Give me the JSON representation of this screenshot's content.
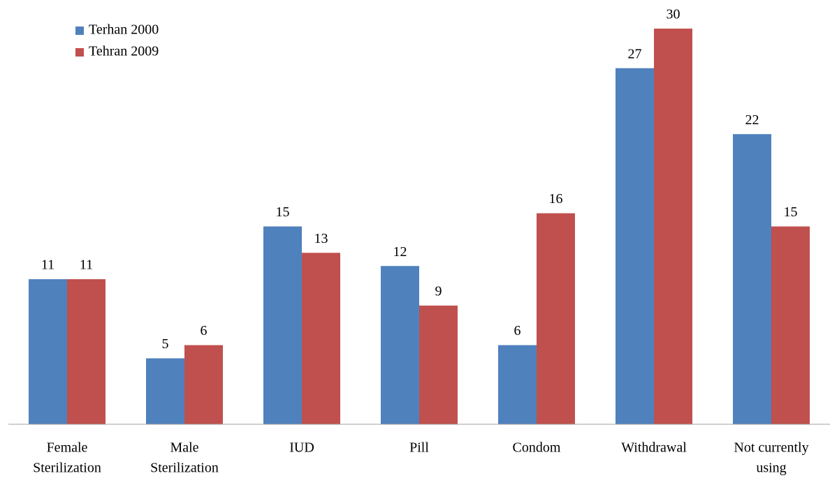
{
  "chart_data": {
    "type": "bar",
    "categories": [
      [
        "Female",
        "Sterilization"
      ],
      [
        "Male",
        "Sterilization"
      ],
      [
        "IUD"
      ],
      [
        "Pill"
      ],
      [
        "Condom"
      ],
      [
        "Withdrawal"
      ],
      [
        "Not currently",
        "using"
      ]
    ],
    "series": [
      {
        "name": "Terhan 2000",
        "color": "#4f81bd",
        "values": [
          11,
          5,
          15,
          12,
          6,
          27,
          22
        ]
      },
      {
        "name": "Tehran 2009",
        "color": "#c0504d",
        "values": [
          11,
          6,
          13,
          9,
          16,
          30,
          15
        ]
      }
    ],
    "ylim": [
      0,
      30
    ],
    "legend": "top-left"
  }
}
